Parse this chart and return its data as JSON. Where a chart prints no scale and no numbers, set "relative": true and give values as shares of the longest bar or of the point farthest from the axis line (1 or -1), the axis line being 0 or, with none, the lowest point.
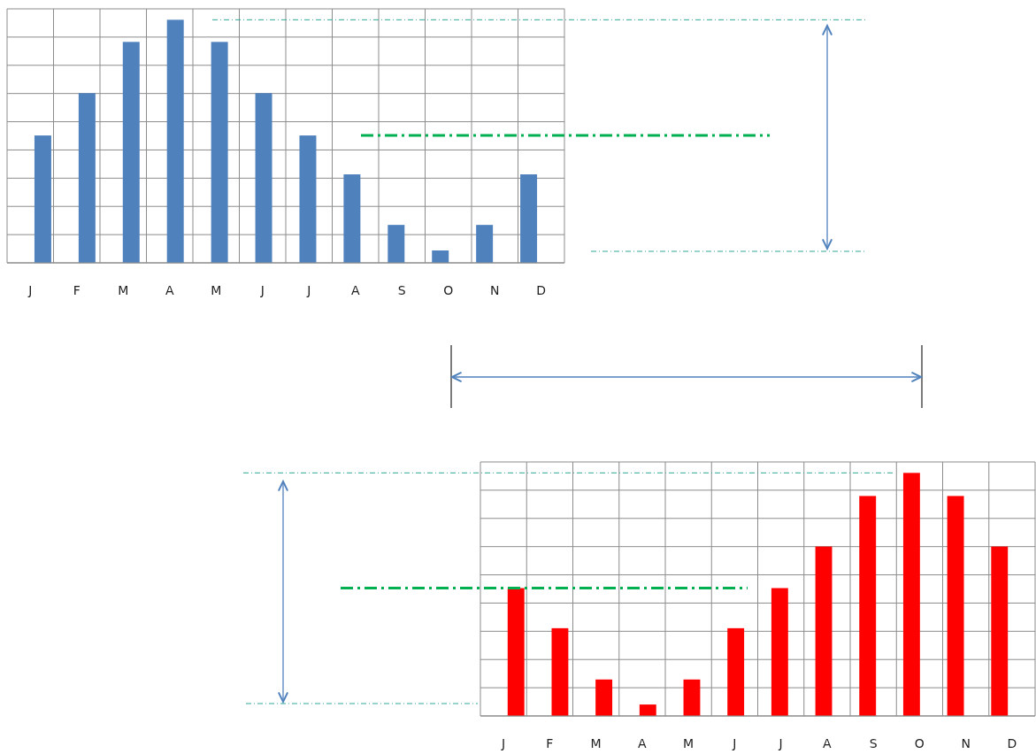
{
  "chart_data": [
    {
      "type": "bar",
      "relative": true,
      "categories": [
        "J",
        "F",
        "M",
        "A",
        "M",
        "J",
        "J",
        "A",
        "S",
        "O",
        "N",
        "D"
      ],
      "grid": true,
      "series": [
        {
          "color": "#4f81bd",
          "values": [
            0.524,
            0.698,
            0.909,
            1,
            0.909,
            0.698,
            0.524,
            0.364,
            0.156,
            0.051,
            0.156,
            0.364
          ]
        }
      ],
      "ref_lines": [
        {
          "axis": "y",
          "value": 0.524,
          "color": "#00b050",
          "line_style": "dashed"
        },
        {
          "axis": "y",
          "value": 1,
          "color": "#31a89a",
          "line_style": "dotted"
        }
      ]
    },
    {
      "type": "bar",
      "relative": true,
      "categories": [
        "J",
        "F",
        "M",
        "A",
        "M",
        "J",
        "J",
        "A",
        "S",
        "O",
        "N",
        "D"
      ],
      "grid": true,
      "series": [
        {
          "color": "#ff0000",
          "values": [
            0.526,
            0.361,
            0.15,
            0.047,
            0.15,
            0.361,
            0.526,
            0.697,
            0.905,
            1,
            0.905,
            0.697
          ]
        }
      ],
      "ref_lines": [
        {
          "axis": "y",
          "value": 0.526,
          "color": "#00b050",
          "line_style": "dashed"
        },
        {
          "axis": "y",
          "value": 1,
          "color": "#31a89a",
          "line_style": "dotted"
        }
      ]
    }
  ]
}
